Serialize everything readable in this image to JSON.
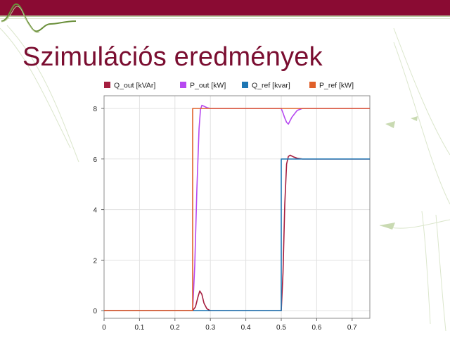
{
  "slide": {
    "title": "Szimulációs eredmények"
  },
  "colors": {
    "header_bar": "#8a0b33",
    "title": "#7a0d30",
    "Q_out": "#a51e3f",
    "P_out": "#b649f0",
    "Q_ref": "#1f77b4",
    "P_ref": "#e0602a"
  },
  "chart_data": {
    "type": "line",
    "xlim": [
      0,
      0.75
    ],
    "ylim": [
      -0.3,
      8.5
    ],
    "xticks": [
      "0",
      "0.1",
      "0.2",
      "0.3",
      "0.4",
      "0.5",
      "0.6",
      "0.7"
    ],
    "yticks": [
      "0",
      "2",
      "4",
      "6",
      "8"
    ],
    "grid": true,
    "legend": "top",
    "series": [
      {
        "name": "Q_out [kVAr]",
        "x": [
          0,
          0.25,
          0.258,
          0.265,
          0.27,
          0.276,
          0.282,
          0.29,
          0.3,
          0.5,
          0.505,
          0.51,
          0.515,
          0.52,
          0.525,
          0.535,
          0.545,
          0.56,
          0.75
        ],
        "y": [
          0,
          0,
          0.15,
          0.55,
          0.78,
          0.65,
          0.3,
          0.08,
          0,
          0,
          1.5,
          4.2,
          5.8,
          6.1,
          6.15,
          6.08,
          6.03,
          6.0,
          6.0
        ]
      },
      {
        "name": "P_out [kW]",
        "x": [
          0,
          0.25,
          0.256,
          0.262,
          0.268,
          0.272,
          0.276,
          0.28,
          0.29,
          0.3,
          0.31,
          0.5,
          0.505,
          0.51,
          0.515,
          0.52,
          0.53,
          0.545,
          0.56,
          0.75
        ],
        "y": [
          0,
          0,
          1.8,
          4.8,
          7.2,
          7.95,
          8.12,
          8.1,
          8.03,
          8.0,
          8.0,
          8.0,
          7.82,
          7.62,
          7.45,
          7.38,
          7.65,
          7.92,
          8.0,
          8.0
        ]
      },
      {
        "name": "Q_ref [kvar]",
        "x": [
          0,
          0.5,
          0.5,
          0.75
        ],
        "y": [
          0,
          0,
          6,
          6
        ]
      },
      {
        "name": "P_ref [kW]",
        "x": [
          0,
          0.25,
          0.25,
          0.75
        ],
        "y": [
          0,
          0,
          8,
          8
        ]
      }
    ]
  }
}
